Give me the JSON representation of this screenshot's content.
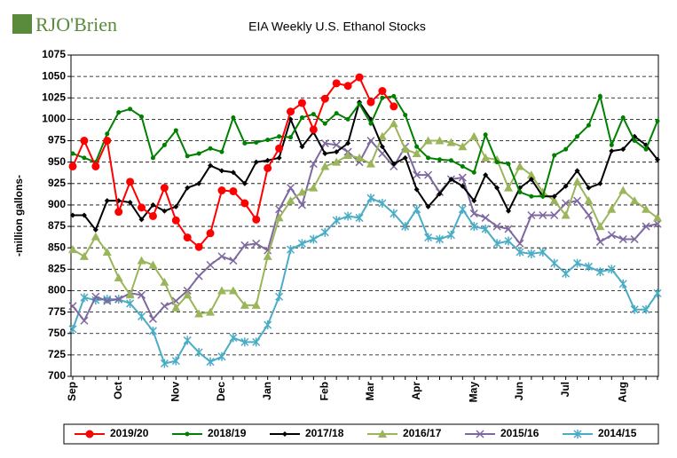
{
  "logo": "RJO'Brien",
  "chart_data": {
    "type": "line",
    "title": "EIA Weekly U.S. Ethanol Stocks",
    "y_label": "-million gallons-",
    "categories": [
      "Sep",
      null,
      null,
      null,
      "Oct",
      null,
      null,
      null,
      null,
      "Nov",
      null,
      null,
      null,
      "Dec",
      null,
      null,
      null,
      "Jan",
      null,
      null,
      null,
      null,
      "Feb",
      null,
      null,
      null,
      "Mar",
      null,
      null,
      null,
      "Apr",
      null,
      null,
      null,
      null,
      "May",
      null,
      null,
      null,
      "Jun",
      null,
      null,
      null,
      "Jul",
      null,
      null,
      null,
      null,
      "Aug",
      null,
      null,
      null
    ],
    "ylim": [
      700,
      1075
    ],
    "yticks": [
      700,
      725,
      750,
      775,
      800,
      825,
      850,
      875,
      900,
      925,
      950,
      975,
      1000,
      1025,
      1050,
      1075
    ],
    "grid": true,
    "legend": "bottom",
    "series": [
      {
        "name": "2019/20",
        "color": "#ff0000",
        "marker": "circle",
        "values": [
          945,
          975,
          945,
          975,
          892,
          927,
          897,
          887,
          920,
          882,
          862,
          851,
          867,
          917,
          916,
          902,
          883,
          943,
          966,
          1009,
          1019,
          988,
          1024,
          1042,
          1039,
          1049,
          1020,
          1033,
          1015,
          null,
          null,
          null,
          null,
          null,
          null,
          null,
          null,
          null,
          null,
          null,
          null,
          null,
          null,
          null,
          null,
          null,
          null,
          null,
          null,
          null,
          null,
          null
        ]
      },
      {
        "name": "2018/19",
        "color": "#008000",
        "marker": "dot",
        "values": [
          960,
          955,
          950,
          983,
          1008,
          1012,
          1003,
          955,
          970,
          987,
          957,
          960,
          966,
          962,
          1002,
          972,
          973,
          976,
          980,
          979,
          1002,
          1006,
          995,
          1007,
          1000,
          1018,
          995,
          1025,
          1027,
          1005,
          968,
          955,
          953,
          952,
          945,
          938,
          982,
          950,
          948,
          915,
          910,
          910,
          958,
          965,
          980,
          993,
          1027,
          970,
          1002,
          975,
          965,
          998
        ]
      },
      {
        "name": "2017/18",
        "color": "#000000",
        "marker": "diamond",
        "values": [
          888,
          888,
          871,
          905,
          905,
          903,
          883,
          900,
          893,
          898,
          920,
          925,
          946,
          940,
          938,
          925,
          950,
          952,
          955,
          1000,
          968,
          985,
          960,
          962,
          972,
          1020,
          1000,
          968,
          948,
          955,
          918,
          898,
          913,
          930,
          922,
          905,
          935,
          920,
          893,
          920,
          930,
          910,
          910,
          922,
          940,
          920,
          925,
          963,
          965,
          980,
          970,
          953
        ]
      },
      {
        "name": "2016/17",
        "color": "#9bb55a",
        "marker": "triangle",
        "values": [
          848,
          840,
          863,
          845,
          815,
          795,
          835,
          830,
          810,
          780,
          795,
          773,
          775,
          800,
          800,
          783,
          783,
          840,
          885,
          905,
          915,
          920,
          945,
          950,
          958,
          955,
          948,
          980,
          995,
          965,
          960,
          975,
          975,
          973,
          968,
          980,
          955,
          953,
          920,
          945,
          935,
          915,
          905,
          888,
          927,
          905,
          875,
          895,
          917,
          905,
          895,
          885
        ]
      },
      {
        "name": "2015/16",
        "color": "#7e68a0",
        "marker": "x",
        "values": [
          782,
          765,
          793,
          788,
          790,
          797,
          795,
          767,
          782,
          788,
          800,
          817,
          830,
          840,
          835,
          853,
          855,
          847,
          895,
          920,
          900,
          948,
          972,
          970,
          962,
          950,
          975,
          960,
          945,
          968,
          935,
          935,
          915,
          930,
          932,
          890,
          885,
          875,
          872,
          855,
          888,
          888,
          888,
          902,
          905,
          888,
          857,
          865,
          860,
          860,
          875,
          878
        ]
      },
      {
        "name": "2014/15",
        "color": "#4bacc6",
        "marker": "star",
        "values": [
          755,
          792,
          789,
          790,
          790,
          785,
          770,
          753,
          715,
          718,
          742,
          728,
          717,
          723,
          745,
          740,
          740,
          760,
          793,
          848,
          855,
          860,
          868,
          882,
          887,
          885,
          908,
          902,
          890,
          875,
          895,
          862,
          860,
          865,
          895,
          875,
          872,
          855,
          858,
          845,
          843,
          845,
          832,
          820,
          832,
          828,
          822,
          825,
          808,
          778,
          778,
          797
        ]
      }
    ]
  }
}
